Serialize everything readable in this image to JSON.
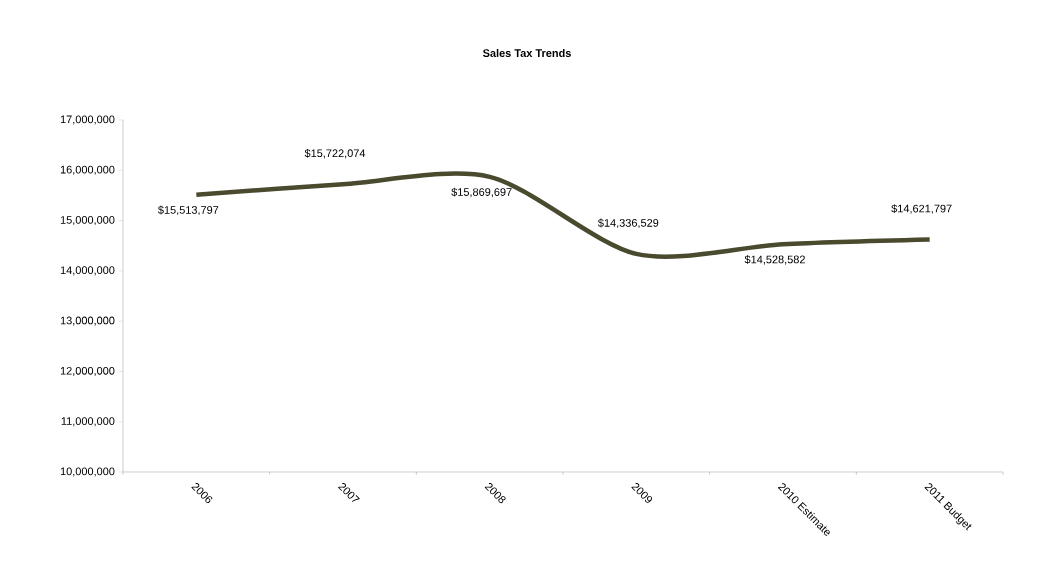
{
  "chart_data": {
    "type": "line",
    "title": "Sales Tax Trends",
    "categories": [
      "2006",
      "2007",
      "2008",
      "2009",
      "2010 Estimate",
      "2011 Budget"
    ],
    "values": [
      15513797,
      15722074,
      15869697,
      14336529,
      14528582,
      14621797
    ],
    "value_labels": [
      "$15,513,797",
      "$15,722,074",
      "$15,869,697",
      "$14,336,529",
      "$14,528,582",
      "$14,621,797"
    ],
    "color": "#4a4a2e",
    "ylim": [
      10000000,
      17000000
    ],
    "yticks": [
      {
        "value": 10000000,
        "label": "10,000,000"
      },
      {
        "value": 11000000,
        "label": "11,000,000"
      },
      {
        "value": 12000000,
        "label": "12,000,000"
      },
      {
        "value": 13000000,
        "label": "13,000,000"
      },
      {
        "value": 14000000,
        "label": "14,000,000"
      },
      {
        "value": 15000000,
        "label": "15,000,000"
      },
      {
        "value": 16000000,
        "label": "16,000,000"
      },
      {
        "value": 17000000,
        "label": "17,000,000"
      }
    ],
    "grid": false
  }
}
